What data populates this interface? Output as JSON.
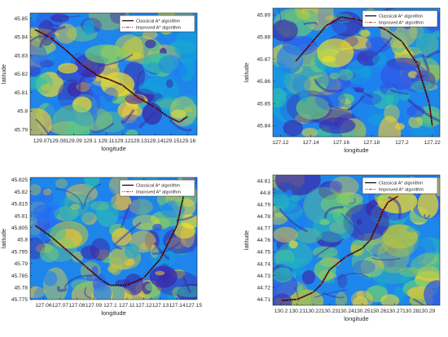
{
  "chart_data": [
    {
      "type": "line",
      "xlabel": "longitude",
      "ylabel": "latitude",
      "xlim": [
        129.063,
        129.166
      ],
      "ylim": [
        45.787,
        45.853
      ],
      "xticks": [
        129.07,
        129.08,
        129.09,
        129.1,
        129.11,
        129.12,
        129.13,
        129.14,
        129.15,
        129.16
      ],
      "yticks": [
        45.79,
        45.8,
        45.81,
        45.82,
        45.83,
        45.84,
        45.85
      ],
      "legend": "top-right",
      "series": [
        {
          "name": "Classical A* algorithm",
          "color": "#000000",
          "x": [
            129.066,
            129.075,
            129.085,
            129.095,
            129.105,
            129.112,
            129.12,
            129.13,
            129.14,
            129.148,
            129.155,
            129.16
          ],
          "y": [
            45.844,
            45.84,
            45.833,
            45.825,
            45.819,
            45.817,
            45.814,
            45.807,
            45.802,
            45.797,
            45.794,
            45.797
          ]
        },
        {
          "name": "Improved A* algorithm",
          "color": "#d62728",
          "x": [
            129.066,
            129.075,
            129.085,
            129.095,
            129.105,
            129.112,
            129.12,
            129.13,
            129.14,
            129.148,
            129.155,
            129.16
          ],
          "y": [
            45.844,
            45.84,
            45.833,
            45.825,
            45.819,
            45.817,
            45.814,
            45.807,
            45.802,
            45.797,
            45.794,
            45.797
          ]
        }
      ]
    },
    {
      "type": "line",
      "xlabel": "longitude",
      "ylabel": "latitude",
      "xlim": [
        127.115,
        127.225
      ],
      "ylim": [
        45.835,
        45.893
      ],
      "xticks": [
        127.12,
        127.14,
        127.16,
        127.18,
        127.2,
        127.22
      ],
      "yticks": [
        45.84,
        45.85,
        45.86,
        45.87,
        45.88,
        45.89
      ],
      "legend": "top-right",
      "series": [
        {
          "name": "Classical A* algorithm",
          "color": "#000000",
          "x": [
            127.13,
            127.14,
            127.15,
            127.16,
            127.17,
            127.18,
            127.19,
            127.2,
            127.21,
            127.218,
            127.22
          ],
          "y": [
            45.869,
            45.877,
            45.885,
            45.889,
            45.888,
            45.886,
            45.883,
            45.878,
            45.868,
            45.85,
            45.84
          ]
        },
        {
          "name": "Improved A* algorithm",
          "color": "#d62728",
          "x": [
            127.13,
            127.14,
            127.15,
            127.16,
            127.17,
            127.18,
            127.19,
            127.2,
            127.21,
            127.218,
            127.22
          ],
          "y": [
            45.869,
            45.877,
            45.885,
            45.889,
            45.888,
            45.886,
            45.883,
            45.878,
            45.868,
            45.85,
            45.84
          ]
        }
      ]
    },
    {
      "type": "line",
      "xlabel": "longitude",
      "ylabel": "latitude",
      "xlim": [
        127.052,
        127.152
      ],
      "ylim": [
        45.775,
        45.826
      ],
      "xticks": [
        127.06,
        127.07,
        127.08,
        127.09,
        127.1,
        127.11,
        127.12,
        127.13,
        127.14,
        127.15
      ],
      "yticks": [
        45.775,
        45.78,
        45.785,
        45.79,
        45.795,
        45.8,
        45.805,
        45.81,
        45.815,
        45.82,
        45.825
      ],
      "legend": "top-right",
      "series": [
        {
          "name": "Classical A* algorithm",
          "color": "#000000",
          "x": [
            127.055,
            127.065,
            127.075,
            127.085,
            127.095,
            127.1,
            127.11,
            127.12,
            127.13,
            127.14,
            127.145
          ],
          "y": [
            45.806,
            45.801,
            45.795,
            45.789,
            45.783,
            45.781,
            45.781,
            45.784,
            45.792,
            45.806,
            45.822
          ]
        },
        {
          "name": "Improved A* algorithm",
          "color": "#d62728",
          "x": [
            127.055,
            127.065,
            127.075,
            127.085,
            127.095,
            127.1,
            127.11,
            127.12,
            127.13,
            127.14,
            127.145
          ],
          "y": [
            45.806,
            45.801,
            45.795,
            45.789,
            45.783,
            45.781,
            45.781,
            45.784,
            45.792,
            45.806,
            45.822
          ]
        }
      ]
    },
    {
      "type": "line",
      "xlabel": "longitude",
      "ylabel": "latitude",
      "xlim": [
        130.195,
        130.298
      ],
      "ylim": [
        44.705,
        44.815
      ],
      "xticks": [
        130.2,
        130.21,
        130.22,
        130.23,
        130.24,
        130.25,
        130.26,
        130.27,
        130.28,
        130.29
      ],
      "yticks": [
        44.71,
        44.72,
        44.73,
        44.74,
        44.75,
        44.76,
        44.77,
        44.78,
        44.79,
        44.8,
        44.81
      ],
      "legend": "top-right",
      "series": [
        {
          "name": "Classical A* algorithm",
          "color": "#000000",
          "x": [
            130.2,
            130.21,
            130.22,
            130.225,
            130.23,
            130.24,
            130.25,
            130.255,
            130.26,
            130.263,
            130.266,
            130.272
          ],
          "y": [
            44.709,
            44.71,
            44.716,
            44.723,
            44.735,
            44.746,
            44.753,
            44.76,
            44.775,
            44.785,
            44.792,
            44.797
          ]
        },
        {
          "name": "Improved A* algorithm",
          "color": "#d62728",
          "x": [
            130.2,
            130.21,
            130.22,
            130.225,
            130.23,
            130.24,
            130.25,
            130.255,
            130.26,
            130.263,
            130.266,
            130.272
          ],
          "y": [
            44.709,
            44.71,
            44.716,
            44.723,
            44.735,
            44.746,
            44.753,
            44.76,
            44.775,
            44.785,
            44.792,
            44.797
          ]
        }
      ]
    }
  ]
}
